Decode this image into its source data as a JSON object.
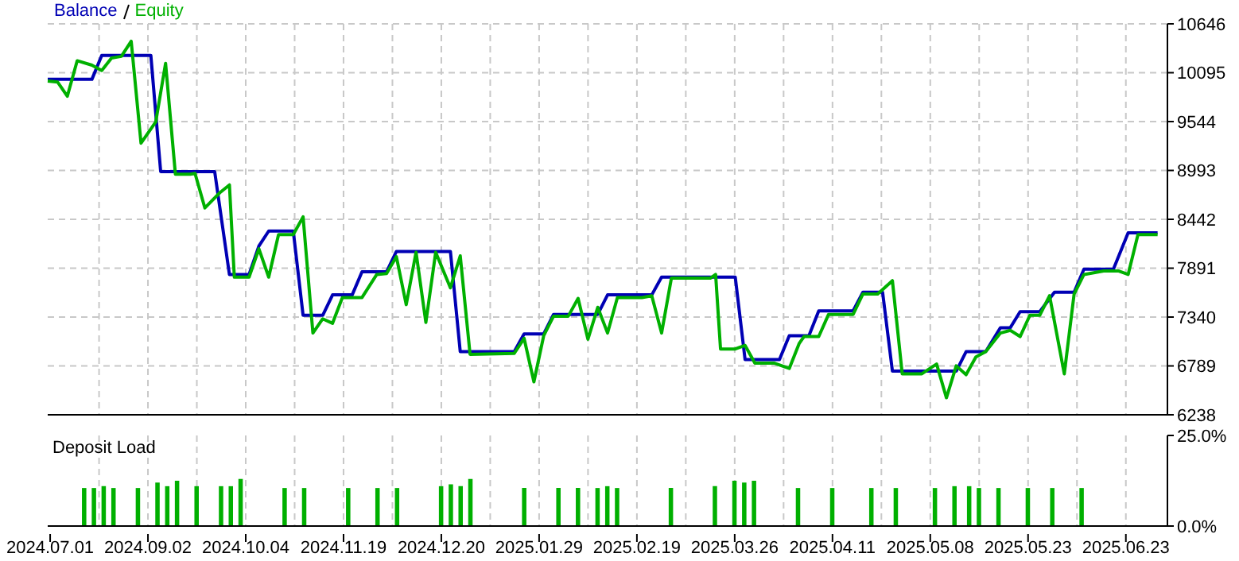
{
  "chart_data": [
    {
      "type": "line",
      "tick_labels": "y",
      "grid": true,
      "legend": "top left",
      "marker": "none",
      "line_style": "solid",
      "ylim": [
        6238,
        10646
      ],
      "yticks": [
        6238,
        6789,
        7340,
        7891,
        8442,
        8993,
        9544,
        10095,
        10646
      ],
      "categories": [
        "2024.07.01",
        null,
        null,
        null,
        null,
        null,
        null,
        null,
        null,
        null,
        null,
        null,
        null,
        null,
        null,
        null,
        null,
        null,
        null,
        null,
        "2024.09.02",
        null,
        null,
        null,
        null,
        null,
        null,
        null,
        null,
        null,
        null,
        null,
        null,
        null,
        null,
        null,
        null,
        null,
        null,
        null,
        "2024.10.04",
        null,
        null,
        null,
        null,
        null,
        null,
        null,
        null,
        null,
        null,
        null,
        null,
        null,
        null,
        null,
        null,
        null,
        null,
        null,
        "2024.11.19",
        null,
        null,
        null,
        null,
        null,
        null,
        null,
        null,
        null,
        null,
        null,
        null,
        null,
        null,
        null,
        null,
        null,
        null,
        null,
        "2024.12.20",
        null,
        null,
        null,
        null,
        null,
        null,
        null,
        null,
        null,
        null,
        null,
        null,
        null,
        null,
        null,
        null,
        null,
        null,
        null,
        "2025.01.29",
        null,
        null,
        null,
        null,
        null,
        null,
        null,
        null,
        null,
        null,
        null,
        null,
        null,
        null,
        null,
        null,
        null,
        null,
        null,
        "2025.02.19",
        null,
        null,
        null,
        null,
        null,
        null,
        null,
        null,
        null,
        null,
        null,
        null,
        null,
        null,
        null,
        null,
        null,
        null,
        null,
        "2025.03.26",
        null,
        null,
        null,
        null,
        null,
        null,
        null,
        null,
        null,
        null,
        null,
        null,
        null,
        null,
        null,
        null,
        null,
        null,
        null,
        "2025.04.11",
        null,
        null,
        null,
        null,
        null,
        null,
        null,
        null,
        null,
        null,
        null,
        null,
        null,
        null,
        null,
        null,
        null,
        null,
        null,
        "2025.05.08",
        null,
        null,
        null,
        null,
        null,
        null,
        null,
        null,
        null,
        null,
        null,
        null,
        null,
        null,
        null,
        null,
        null,
        null,
        null,
        "2025.05.23",
        null,
        null,
        null,
        null,
        null,
        null,
        null,
        null,
        null,
        null,
        null,
        null,
        null,
        null,
        null,
        null,
        null,
        null,
        null,
        "2025.06.23",
        null,
        null,
        null,
        null,
        null,
        null,
        null,
        null
      ],
      "series": [
        {
          "name": "Balance",
          "color": "#0000b4",
          "values": [
            10020,
            null,
            null,
            null,
            null,
            null,
            null,
            null,
            null,
            10020,
            null,
            10290,
            null,
            null,
            null,
            null,
            null,
            null,
            null,
            null,
            null,
            10290,
            null,
            8980,
            null,
            null,
            null,
            null,
            null,
            null,
            null,
            null,
            null,
            null,
            8980,
            null,
            null,
            7820,
            null,
            null,
            null,
            7820,
            null,
            8140,
            null,
            8310,
            null,
            null,
            null,
            null,
            8310,
            null,
            7360,
            null,
            null,
            null,
            7360,
            null,
            7590,
            null,
            null,
            null,
            7590,
            null,
            7850,
            null,
            null,
            null,
            null,
            7850,
            null,
            8080,
            null,
            null,
            null,
            null,
            null,
            null,
            null,
            null,
            null,
            null,
            8080,
            null,
            6950,
            null,
            null,
            null,
            null,
            null,
            null,
            null,
            null,
            null,
            null,
            6950,
            null,
            7150,
            null,
            null,
            null,
            7150,
            null,
            7370,
            null,
            null,
            null,
            null,
            null,
            null,
            null,
            null,
            7370,
            null,
            7590,
            null,
            null,
            null,
            null,
            null,
            null,
            null,
            null,
            7590,
            null,
            7790,
            null,
            null,
            null,
            null,
            null,
            null,
            null,
            null,
            null,
            null,
            null,
            null,
            null,
            null,
            7790,
            null,
            6860,
            null,
            null,
            null,
            null,
            null,
            null,
            6860,
            null,
            7130,
            null,
            null,
            null,
            7130,
            null,
            7410,
            null,
            null,
            null,
            null,
            null,
            null,
            7410,
            null,
            7620,
            null,
            null,
            null,
            7620,
            null,
            6730,
            null,
            null,
            null,
            null,
            null,
            null,
            null,
            null,
            null,
            null,
            null,
            null,
            6730,
            null,
            6950,
            null,
            null,
            null,
            6950,
            null,
            null,
            7220,
            null,
            7220,
            null,
            7400,
            null,
            null,
            null,
            7400,
            null,
            null,
            7620,
            null,
            null,
            null,
            7620,
            null,
            7880,
            null,
            null,
            null,
            null,
            null,
            7880,
            null,
            null,
            8290,
            null,
            null,
            null,
            null,
            null,
            8290,
            null,
            null
          ]
        },
        {
          "name": "Equity",
          "color": "#00b000",
          "values": [
            10000,
            null,
            9990,
            null,
            9830,
            null,
            10230,
            null,
            null,
            10180,
            null,
            10120,
            null,
            10260,
            null,
            10280,
            null,
            10450,
            null,
            9300,
            null,
            null,
            9540,
            null,
            10200,
            null,
            8950,
            null,
            null,
            8950,
            8960,
            null,
            8570,
            null,
            null,
            8740,
            null,
            8830,
            7790,
            null,
            null,
            7790,
            null,
            8110,
            null,
            7790,
            null,
            8270,
            null,
            null,
            8270,
            null,
            8470,
            null,
            7160,
            null,
            7320,
            null,
            7270,
            null,
            7560,
            null,
            null,
            null,
            7560,
            null,
            null,
            7820,
            null,
            7830,
            null,
            8020,
            null,
            7480,
            null,
            8070,
            null,
            7280,
            null,
            8070,
            null,
            null,
            7670,
            null,
            8030,
            null,
            6920,
            null,
            null,
            null,
            null,
            null,
            null,
            null,
            null,
            6930,
            null,
            7100,
            null,
            6610,
            null,
            7130,
            null,
            7350,
            null,
            null,
            7350,
            null,
            7550,
            null,
            7090,
            null,
            7450,
            null,
            7160,
            null,
            7560,
            null,
            null,
            null,
            null,
            7560,
            null,
            7580,
            null,
            7160,
            null,
            7780,
            null,
            null,
            null,
            null,
            null,
            null,
            null,
            7780,
            7820,
            6980,
            null,
            null,
            6980,
            null,
            7020,
            null,
            6820,
            null,
            null,
            null,
            6820,
            null,
            null,
            6760,
            null,
            7040,
            7120,
            null,
            null,
            7120,
            null,
            7370,
            null,
            null,
            null,
            null,
            7370,
            null,
            7600,
            null,
            null,
            7600,
            null,
            null,
            7750,
            null,
            6700,
            null,
            null,
            null,
            6700,
            null,
            null,
            6810,
            null,
            6430,
            null,
            6790,
            null,
            6690,
            null,
            6890,
            null,
            6950,
            null,
            null,
            7160,
            null,
            7190,
            null,
            7120,
            null,
            7360,
            null,
            7360,
            null,
            7580,
            null,
            null,
            6700,
            null,
            7600,
            null,
            7820,
            null,
            null,
            null,
            7860,
            null,
            null,
            7860,
            null,
            7820,
            null,
            8270,
            null,
            null,
            null,
            8270,
            null,
            null
          ]
        }
      ]
    },
    {
      "type": "bar",
      "title": "Deposit Load",
      "grid": "x",
      "color": "#00b000",
      "ylim": [
        0,
        25
      ],
      "yticks": [
        {
          "value": 0,
          "label": "0.0%"
        },
        {
          "value": 25,
          "label": "25.0%"
        }
      ],
      "categories": [
        "2024.07.01",
        null,
        null,
        null,
        null,
        null,
        null,
        null,
        null,
        null,
        null,
        null,
        null,
        null,
        null,
        null,
        null,
        null,
        null,
        null,
        "2024.09.02",
        null,
        null,
        null,
        null,
        null,
        null,
        null,
        null,
        null,
        null,
        null,
        null,
        null,
        null,
        null,
        null,
        null,
        null,
        null,
        "2024.10.04",
        null,
        null,
        null,
        null,
        null,
        null,
        null,
        null,
        null,
        null,
        null,
        null,
        null,
        null,
        null,
        null,
        null,
        null,
        null,
        "2024.11.19",
        null,
        null,
        null,
        null,
        null,
        null,
        null,
        null,
        null,
        null,
        null,
        null,
        null,
        null,
        null,
        null,
        null,
        null,
        null,
        "2024.12.20",
        null,
        null,
        null,
        null,
        null,
        null,
        null,
        null,
        null,
        null,
        null,
        null,
        null,
        null,
        null,
        null,
        null,
        null,
        null,
        "2025.01.29",
        null,
        null,
        null,
        null,
        null,
        null,
        null,
        null,
        null,
        null,
        null,
        null,
        null,
        null,
        null,
        null,
        null,
        null,
        null,
        "2025.02.19",
        null,
        null,
        null,
        null,
        null,
        null,
        null,
        null,
        null,
        null,
        null,
        null,
        null,
        null,
        null,
        null,
        null,
        null,
        null,
        "2025.03.26",
        null,
        null,
        null,
        null,
        null,
        null,
        null,
        null,
        null,
        null,
        null,
        null,
        null,
        null,
        null,
        null,
        null,
        null,
        null,
        "2025.04.11",
        null,
        null,
        null,
        null,
        null,
        null,
        null,
        null,
        null,
        null,
        null,
        null,
        null,
        null,
        null,
        null,
        null,
        null,
        null,
        "2025.05.08",
        null,
        null,
        null,
        null,
        null,
        null,
        null,
        null,
        null,
        null,
        null,
        null,
        null,
        null,
        null,
        null,
        null,
        null,
        null,
        "2025.05.23",
        null,
        null,
        null,
        null,
        null,
        null,
        null,
        null,
        null,
        null,
        null,
        null,
        null,
        null,
        null,
        null,
        null,
        null,
        null,
        "2025.06.23",
        null,
        null,
        null,
        null,
        null,
        null,
        null,
        null
      ],
      "values": [
        null,
        null,
        null,
        null,
        null,
        null,
        null,
        10.5,
        null,
        10.5,
        null,
        11,
        null,
        10.5,
        null,
        null,
        null,
        null,
        10.5,
        null,
        null,
        null,
        12,
        null,
        11,
        null,
        12.5,
        null,
        null,
        null,
        11,
        null,
        null,
        null,
        null,
        11,
        null,
        11,
        null,
        13,
        null,
        null,
        null,
        null,
        null,
        null,
        null,
        null,
        10.5,
        null,
        null,
        null,
        10.5,
        null,
        null,
        null,
        null,
        null,
        null,
        null,
        null,
        10.5,
        null,
        null,
        null,
        null,
        null,
        10.5,
        null,
        null,
        null,
        10.5,
        null,
        null,
        null,
        null,
        null,
        null,
        null,
        null,
        11,
        null,
        11.5,
        null,
        11,
        null,
        13,
        null,
        null,
        null,
        null,
        null,
        null,
        null,
        null,
        null,
        null,
        10.5,
        null,
        null,
        null,
        null,
        null,
        null,
        10.5,
        null,
        null,
        null,
        10.5,
        null,
        null,
        null,
        10.5,
        null,
        11,
        null,
        10.5,
        null,
        null,
        null,
        null,
        null,
        null,
        null,
        null,
        null,
        null,
        10.5,
        null,
        null,
        null,
        null,
        null,
        null,
        null,
        null,
        11,
        null,
        null,
        null,
        12.5,
        null,
        12,
        null,
        12.5,
        null,
        null,
        null,
        null,
        null,
        null,
        null,
        null,
        10.5,
        null,
        null,
        null,
        null,
        null,
        null,
        10.5,
        null,
        null,
        null,
        null,
        null,
        null,
        null,
        10.5,
        null,
        null,
        null,
        null,
        10.5,
        null,
        null,
        null,
        null,
        null,
        null,
        null,
        10.5,
        null,
        null,
        null,
        11,
        null,
        null,
        11,
        null,
        10.5,
        null,
        null,
        null,
        10.5,
        null,
        null,
        null,
        null,
        null,
        10.5,
        null,
        null,
        null,
        null,
        10.5,
        null,
        null,
        null,
        null,
        null,
        10.5,
        null,
        null,
        null,
        null,
        null,
        null,
        null,
        null,
        null,
        null,
        null,
        null,
        null,
        null,
        null,
        null,
        null
      ]
    }
  ]
}
